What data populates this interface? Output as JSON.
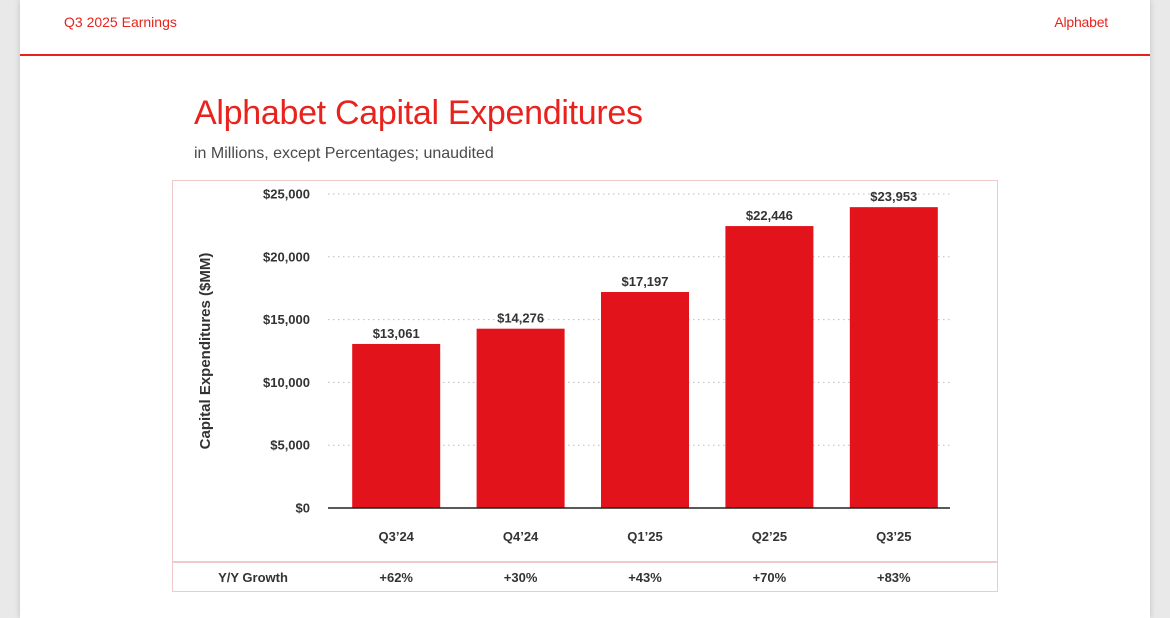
{
  "header": {
    "left_label": "Q3 2025 Earnings",
    "right_label": "Alphabet"
  },
  "title": "Alphabet Capital Expenditures",
  "subtitle": "in Millions, except Percentages; unaudited",
  "colors": {
    "accent": "#e8231e",
    "bar": "#e3131b",
    "box_border": "#f0c9c9"
  },
  "chart_data": {
    "type": "bar",
    "ylabel": "Capital Expenditures ($MM)",
    "ylim": [
      0,
      25000
    ],
    "yticks": [
      "$0",
      "$5,000",
      "$10,000",
      "$15,000",
      "$20,000",
      "$25,000"
    ],
    "grid": "dotted-horizontal",
    "categories": [
      "Q3’24",
      "Q4’24",
      "Q1’25",
      "Q2’25",
      "Q3’25"
    ],
    "values": [
      13061,
      14276,
      17197,
      22446,
      23953
    ],
    "value_labels": [
      "$13,061",
      "$14,276",
      "$17,197",
      "$22,446",
      "$23,953"
    ]
  },
  "growth_row": {
    "label": "Y/Y Growth",
    "values": [
      "+62%",
      "+30%",
      "+43%",
      "+70%",
      "+83%"
    ]
  }
}
